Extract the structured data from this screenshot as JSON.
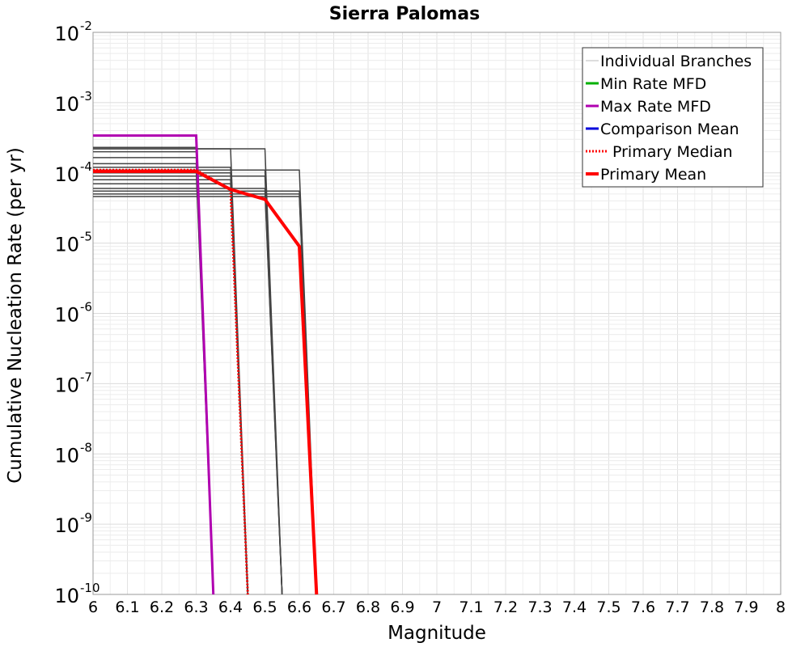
{
  "chart_data": {
    "type": "line",
    "title": "Sierra Palomas",
    "xlabel": "Magnitude",
    "ylabel": "Cumulative Nucleation Rate (per yr)",
    "xlim": [
      6,
      8
    ],
    "ylim": [
      1e-10,
      0.01
    ],
    "yscale": "log",
    "grid": true,
    "legend_position": "top-right",
    "x_ticks": [
      "6",
      "6.1",
      "6.2",
      "6.3",
      "6.4",
      "6.5",
      "6.6",
      "6.7",
      "6.8",
      "6.9",
      "7",
      "7.1",
      "7.2",
      "7.3",
      "7.4",
      "7.5",
      "7.6",
      "7.7",
      "7.8",
      "7.9",
      "8"
    ],
    "y_ticks": [
      {
        "base": "10",
        "exp": "-2",
        "value": 0.01
      },
      {
        "base": "10",
        "exp": "-3",
        "value": 0.001
      },
      {
        "base": "10",
        "exp": "-4",
        "value": 0.0001
      },
      {
        "base": "10",
        "exp": "-5",
        "value": 1e-05
      },
      {
        "base": "10",
        "exp": "-6",
        "value": 1e-06
      },
      {
        "base": "10",
        "exp": "-7",
        "value": 1e-07
      },
      {
        "base": "10",
        "exp": "-8",
        "value": 1e-08
      },
      {
        "base": "10",
        "exp": "-9",
        "value": 1e-09
      },
      {
        "base": "10",
        "exp": "-10",
        "value": 1e-10
      }
    ],
    "legend": [
      {
        "label": "Individual Branches",
        "color": "#bbbbbb",
        "style": "solid",
        "width": 1
      },
      {
        "label": "Min Rate MFD",
        "color": "#00b000",
        "style": "solid",
        "width": 3
      },
      {
        "label": "Max Rate MFD",
        "color": "#b000b0",
        "style": "solid",
        "width": 3
      },
      {
        "label": "Comparison Mean",
        "color": "#0000dd",
        "style": "solid",
        "width": 3
      },
      {
        "label": "Primary Median",
        "color": "#ff0000",
        "style": "dotted",
        "width": 3
      },
      {
        "label": "Primary Mean",
        "color": "#ff0000",
        "style": "solid",
        "width": 4
      }
    ],
    "branches": [
      {
        "rate": 0.00023,
        "mmax": 6.3
      },
      {
        "rate": 0.0002,
        "mmax": 6.3
      },
      {
        "rate": 0.000165,
        "mmax": 6.3
      },
      {
        "rate": 0.000135,
        "mmax": 6.3
      },
      {
        "rate": 0.00011,
        "mmax": 6.3
      },
      {
        "rate": 0.00022,
        "mmax": 6.4
      },
      {
        "rate": 0.00012,
        "mmax": 6.4
      },
      {
        "rate": 0.0001,
        "mmax": 6.4
      },
      {
        "rate": 8e-05,
        "mmax": 6.4
      },
      {
        "rate": 7e-05,
        "mmax": 6.4
      },
      {
        "rate": 0.00022,
        "mmax": 6.5
      },
      {
        "rate": 0.00011,
        "mmax": 6.5
      },
      {
        "rate": 9e-05,
        "mmax": 6.5
      },
      {
        "rate": 6e-05,
        "mmax": 6.5
      },
      {
        "rate": 5.5e-05,
        "mmax": 6.5
      },
      {
        "rate": 0.00011,
        "mmax": 6.6
      },
      {
        "rate": 5.5e-05,
        "mmax": 6.6
      },
      {
        "rate": 5e-05,
        "mmax": 6.6
      },
      {
        "rate": 4.6e-05,
        "mmax": 6.6
      }
    ],
    "max_rate_mfd": [
      {
        "x": 6.0,
        "y": 0.00034
      },
      {
        "x": 6.3,
        "y": 0.00034
      },
      {
        "x": 6.35,
        "y": 1e-10
      }
    ],
    "primary_median": [
      {
        "x": 6.0,
        "y": 0.00011
      },
      {
        "x": 6.3,
        "y": 0.00011
      },
      {
        "x": 6.4,
        "y": 5.8e-05
      },
      {
        "x": 6.45,
        "y": 1e-10
      }
    ],
    "primary_mean": [
      {
        "x": 6.0,
        "y": 0.000105
      },
      {
        "x": 6.3,
        "y": 0.000105
      },
      {
        "x": 6.4,
        "y": 5.8e-05
      },
      {
        "x": 6.5,
        "y": 4.2e-05
      },
      {
        "x": 6.6,
        "y": 9e-06
      },
      {
        "x": 6.65,
        "y": 1e-10
      }
    ]
  }
}
